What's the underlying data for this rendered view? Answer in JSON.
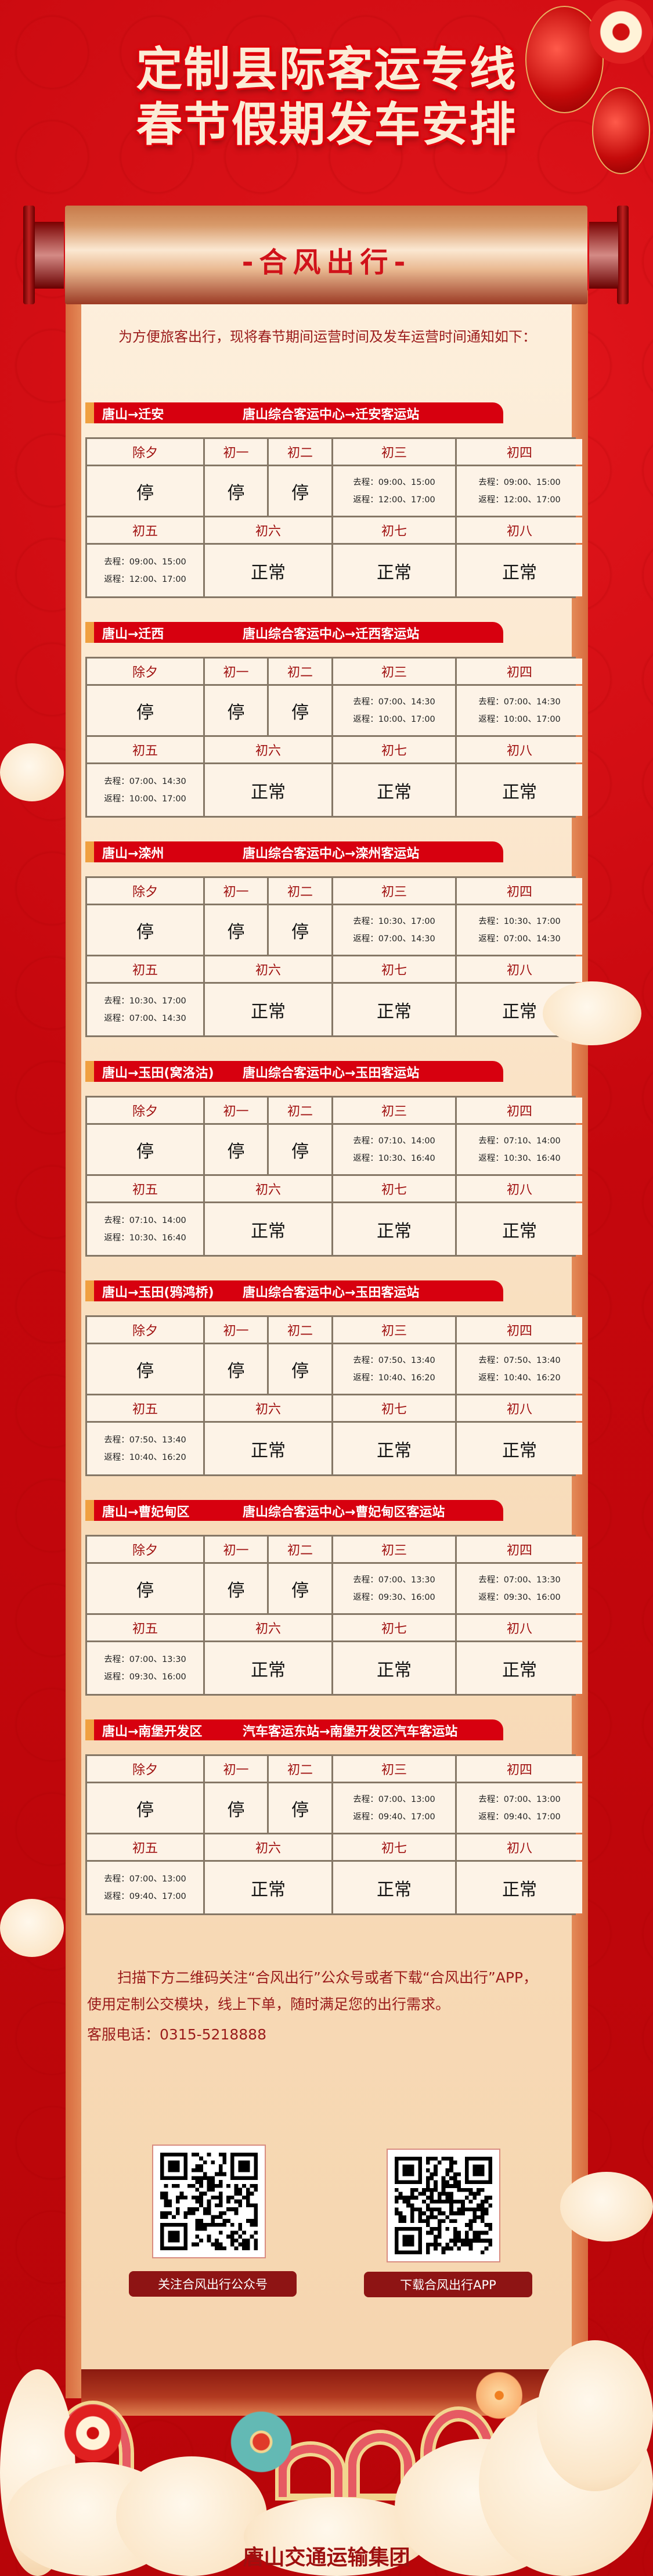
{
  "header": {
    "title_line1": "定制县际客运专线",
    "title_line2": "春节假期发车安排",
    "scroll_title": "-合风出行-"
  },
  "intro": "为方便旅客出行，现将春节期间运营时间及发车运营时间通知如下：",
  "days": [
    "除夕",
    "初一",
    "初二",
    "初三",
    "初四",
    "初五",
    "初六",
    "初七",
    "初八"
  ],
  "labels": {
    "go": "去程：",
    "ret": "返程："
  },
  "routes": [
    {
      "short": "唐山→迁安",
      "full": "唐山综合客运中心→迁安客运站",
      "cells": [
        "停",
        "停",
        "停",
        {
          "go": "09:00、15:00",
          "ret": "12:00、17:00"
        },
        {
          "go": "09:00、15:00",
          "ret": "12:00、17:00"
        },
        {
          "go": "09:00、15:00",
          "ret": "12:00、17:00"
        },
        "正常",
        "正常",
        "正常"
      ]
    },
    {
      "short": "唐山→迁西",
      "full": "唐山综合客运中心→迁西客运站",
      "cells": [
        "停",
        "停",
        "停",
        {
          "go": "07:00、14:30",
          "ret": "10:00、17:00"
        },
        {
          "go": "07:00、14:30",
          "ret": "10:00、17:00"
        },
        {
          "go": "07:00、14:30",
          "ret": "10:00、17:00"
        },
        "正常",
        "正常",
        "正常"
      ]
    },
    {
      "short": "唐山→滦州",
      "full": "唐山综合客运中心→滦州客运站",
      "cells": [
        "停",
        "停",
        "停",
        {
          "go": "10:30、17:00",
          "ret": "07:00、14:30"
        },
        {
          "go": "10:30、17:00",
          "ret": "07:00、14:30"
        },
        {
          "go": "10:30、17:00",
          "ret": "07:00、14:30"
        },
        "正常",
        "正常",
        "正常"
      ]
    },
    {
      "short": "唐山→玉田(窝洛沽)",
      "full": "唐山综合客运中心→玉田客运站",
      "cells": [
        "停",
        "停",
        "停",
        {
          "go": "07:10、14:00",
          "ret": "10:30、16:40"
        },
        {
          "go": "07:10、14:00",
          "ret": "10:30、16:40"
        },
        {
          "go": "07:10、14:00",
          "ret": "10:30、16:40"
        },
        "正常",
        "正常",
        "正常"
      ]
    },
    {
      "short": "唐山→玉田(鸦鸿桥)",
      "full": "唐山综合客运中心→玉田客运站",
      "cells": [
        "停",
        "停",
        "停",
        {
          "go": "07:50、13:40",
          "ret": "10:40、16:20"
        },
        {
          "go": "07:50、13:40",
          "ret": "10:40、16:20"
        },
        {
          "go": "07:50、13:40",
          "ret": "10:40、16:20"
        },
        "正常",
        "正常",
        "正常"
      ]
    },
    {
      "short": "唐山→曹妃甸区",
      "full": "唐山综合客运中心→曹妃甸区客运站",
      "cells": [
        "停",
        "停",
        "停",
        {
          "go": "07:00、13:30",
          "ret": "09:30、16:00"
        },
        {
          "go": "07:00、13:30",
          "ret": "09:30、16:00"
        },
        {
          "go": "07:00、13:30",
          "ret": "09:30、16:00"
        },
        "正常",
        "正常",
        "正常"
      ]
    },
    {
      "short": "唐山→南堡开发区",
      "full": "汽车客运东站→南堡开发区汽车客运站",
      "cells": [
        "停",
        "停",
        "停",
        {
          "go": "07:00、13:00",
          "ret": "09:40、17:00"
        },
        {
          "go": "07:00、13:00",
          "ret": "09:40、17:00"
        },
        {
          "go": "07:00、13:00",
          "ret": "09:40、17:00"
        },
        "正常",
        "正常",
        "正常"
      ]
    }
  ],
  "footer": {
    "text": "扫描下方二维码关注“合风出行”公众号或者下载“合风出行”APP，使用定制公交模块，线上下单，随时满足您的出行需求。",
    "phone": "客服电话：0315-5218888",
    "qr_wechat_label": "关注合风出行公众号",
    "qr_app_label": "下载合风出行APP",
    "organization": "唐山交通运输集团"
  },
  "colors": {
    "background_red": "#c5070d",
    "banner_red": "#d7000f",
    "banner_accent": "#f0a040",
    "header_text": "#a01212",
    "body_text": "#9b1b1b",
    "button": "#8e1414"
  }
}
